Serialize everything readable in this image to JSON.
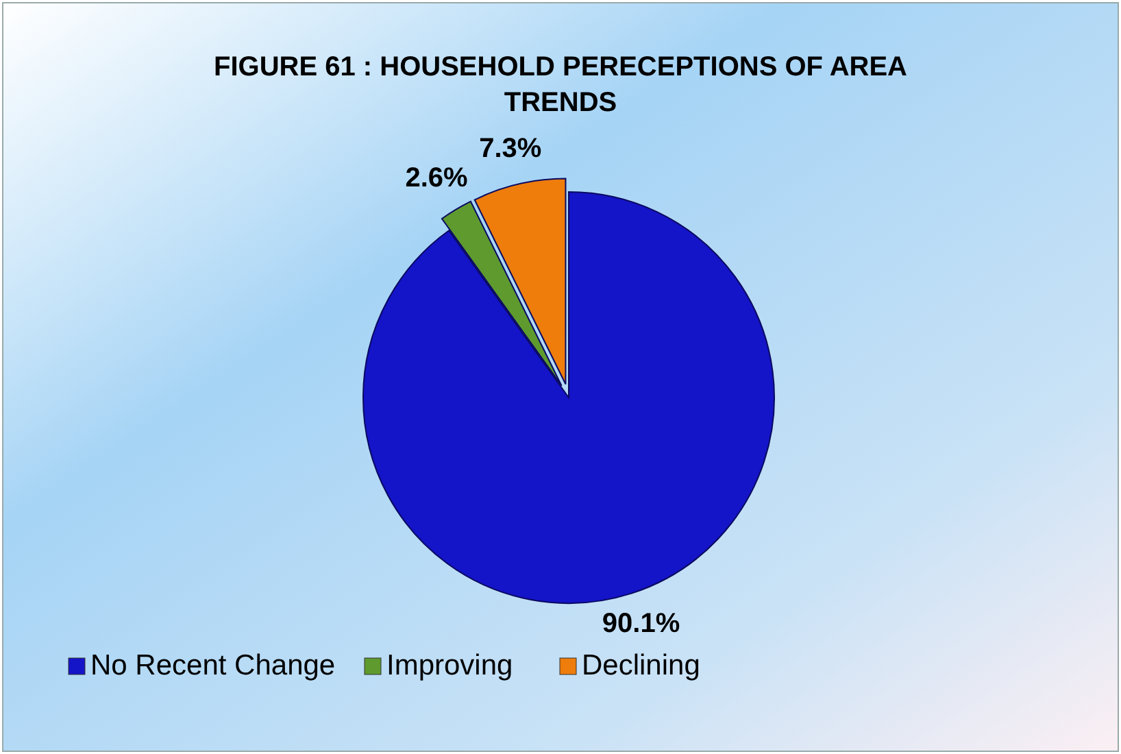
{
  "chart_data": {
    "type": "pie",
    "title": "FIGURE 61 : HOUSEHOLD PERECEPTIONS OF AREA TRENDS",
    "categories": [
      "No Recent Change",
      "Improving",
      "Declining"
    ],
    "values": [
      90.1,
      2.6,
      7.3
    ],
    "value_labels": [
      "90.1%",
      "2.6%",
      "7.3%"
    ],
    "colors": [
      "#1414c8",
      "#5e9a2e",
      "#ee7d0c"
    ],
    "legend": "bottom left"
  }
}
